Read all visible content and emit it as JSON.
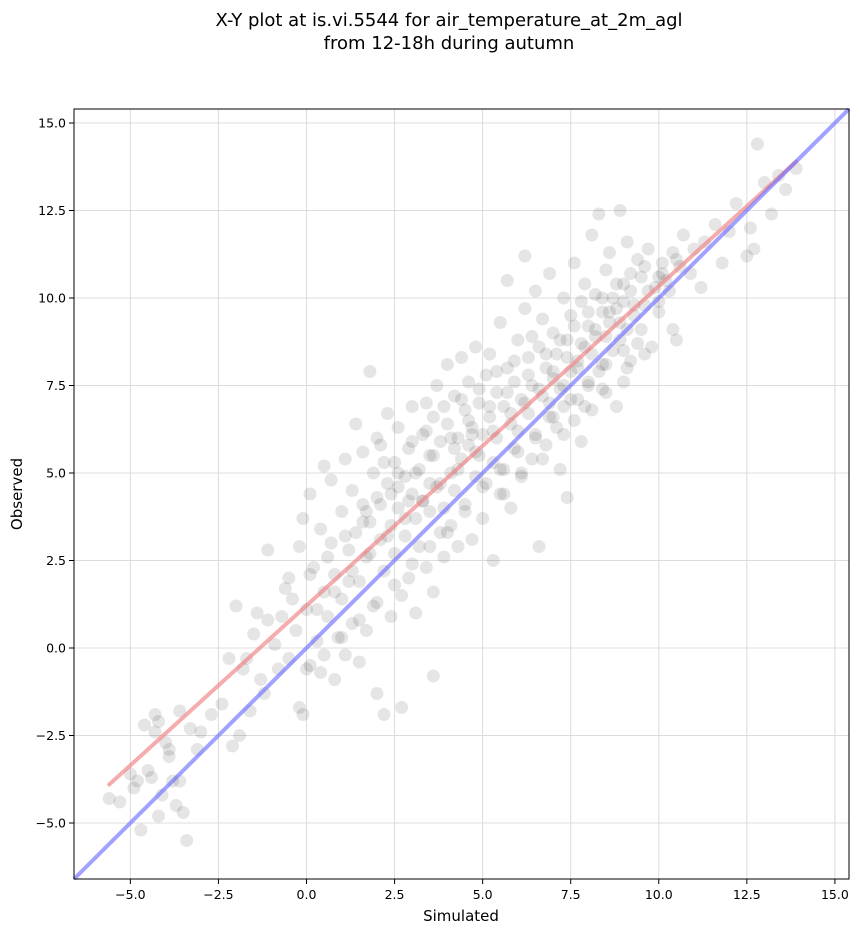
{
  "chart_data": {
    "type": "scatter",
    "title": "X-Y plot at is.vi.5544 for air_temperature_at_2m_agl",
    "subtitle": "from 12-18h during autumn",
    "xlabel": "Simulated",
    "ylabel": "Observed",
    "xlim": [
      -6.6,
      15.4
    ],
    "ylim": [
      -6.6,
      15.4
    ],
    "xticks": [
      -5.0,
      -2.5,
      0.0,
      2.5,
      5.0,
      7.5,
      10.0,
      12.5,
      15.0
    ],
    "yticks": [
      -5.0,
      -2.5,
      0.0,
      2.5,
      5.0,
      7.5,
      10.0,
      12.5,
      15.0
    ],
    "xtick_labels": [
      "−5.0",
      "−2.5",
      "0.0",
      "2.5",
      "5.0",
      "7.5",
      "10.0",
      "12.5",
      "15.0"
    ],
    "ytick_labels": [
      "−5.0",
      "−2.5",
      "0.0",
      "2.5",
      "5.0",
      "7.5",
      "10.0",
      "12.5",
      "15.0"
    ],
    "grid": true,
    "colors": {
      "points": "#000000",
      "fit_line": "#f08080",
      "identity_line": "#6f6fff"
    },
    "fit_line": {
      "x": [
        -5.6,
        13.9
      ],
      "y": [
        -3.9,
        13.9
      ]
    },
    "identity_line": {
      "x": [
        -6.6,
        15.4
      ],
      "y": [
        -6.6,
        15.4
      ]
    },
    "points": [
      [
        -5.6,
        -4.3
      ],
      [
        -5.3,
        -4.4
      ],
      [
        -5.0,
        -3.6
      ],
      [
        -4.9,
        -4.0
      ],
      [
        -4.8,
        -3.8
      ],
      [
        -4.7,
        -5.2
      ],
      [
        -4.6,
        -2.2
      ],
      [
        -4.5,
        -3.5
      ],
      [
        -4.4,
        -3.7
      ],
      [
        -4.3,
        -2.4
      ],
      [
        -4.3,
        -1.9
      ],
      [
        -4.2,
        -2.1
      ],
      [
        -4.2,
        -4.8
      ],
      [
        -4.1,
        -4.2
      ],
      [
        -4.0,
        -2.7
      ],
      [
        -3.9,
        -3.1
      ],
      [
        -3.9,
        -2.9
      ],
      [
        -3.8,
        -3.8
      ],
      [
        -3.7,
        -4.5
      ],
      [
        -3.6,
        -3.8
      ],
      [
        -3.6,
        -1.8
      ],
      [
        -3.5,
        -4.7
      ],
      [
        -3.4,
        -5.5
      ],
      [
        -3.3,
        -2.3
      ],
      [
        -3.1,
        -2.9
      ],
      [
        -3.0,
        -2.4
      ],
      [
        -2.7,
        -1.9
      ],
      [
        -2.4,
        -1.6
      ],
      [
        -2.2,
        -0.3
      ],
      [
        -2.1,
        -2.8
      ],
      [
        -2.0,
        1.2
      ],
      [
        -1.9,
        -2.5
      ],
      [
        -1.8,
        -0.6
      ],
      [
        -1.7,
        -0.3
      ],
      [
        -1.6,
        -1.8
      ],
      [
        -1.5,
        0.4
      ],
      [
        -1.4,
        1.0
      ],
      [
        -1.3,
        -0.9
      ],
      [
        -1.2,
        -1.3
      ],
      [
        -1.1,
        0.8
      ],
      [
        -1.1,
        2.8
      ],
      [
        -0.9,
        0.1
      ],
      [
        -0.8,
        -0.6
      ],
      [
        -0.7,
        0.9
      ],
      [
        -0.6,
        1.7
      ],
      [
        -0.5,
        2.0
      ],
      [
        -0.5,
        -0.3
      ],
      [
        -0.4,
        1.4
      ],
      [
        -0.3,
        0.5
      ],
      [
        -0.2,
        2.9
      ],
      [
        -0.2,
        -1.7
      ],
      [
        -0.1,
        3.7
      ],
      [
        -0.1,
        -1.9
      ],
      [
        0.0,
        1.1
      ],
      [
        0.1,
        4.4
      ],
      [
        0.1,
        -0.5
      ],
      [
        0.2,
        2.3
      ],
      [
        0.3,
        0.2
      ],
      [
        0.4,
        3.4
      ],
      [
        0.4,
        -0.7
      ],
      [
        0.5,
        5.2
      ],
      [
        0.5,
        1.6
      ],
      [
        0.6,
        0.9
      ],
      [
        0.7,
        3.0
      ],
      [
        0.7,
        4.8
      ],
      [
        0.8,
        2.1
      ],
      [
        0.8,
        -0.9
      ],
      [
        0.9,
        0.3
      ],
      [
        1.0,
        3.9
      ],
      [
        1.0,
        1.4
      ],
      [
        1.1,
        5.4
      ],
      [
        1.1,
        -0.2
      ],
      [
        1.2,
        2.8
      ],
      [
        1.3,
        4.5
      ],
      [
        1.3,
        0.7
      ],
      [
        1.4,
        3.3
      ],
      [
        1.4,
        6.4
      ],
      [
        1.5,
        1.9
      ],
      [
        1.5,
        -0.4
      ],
      [
        1.6,
        4.1
      ],
      [
        1.6,
        5.6
      ],
      [
        1.7,
        2.6
      ],
      [
        1.7,
        0.5
      ],
      [
        1.8,
        7.9
      ],
      [
        1.8,
        3.6
      ],
      [
        1.9,
        5.0
      ],
      [
        1.9,
        1.2
      ],
      [
        2.0,
        4.3
      ],
      [
        2.0,
        6.0
      ],
      [
        2.0,
        -1.3
      ],
      [
        2.1,
        3.1
      ],
      [
        2.1,
        5.8
      ],
      [
        2.2,
        2.2
      ],
      [
        2.2,
        -1.9
      ],
      [
        2.3,
        4.7
      ],
      [
        2.3,
        6.7
      ],
      [
        2.4,
        3.5
      ],
      [
        2.4,
        0.9
      ],
      [
        2.5,
        5.3
      ],
      [
        2.5,
        2.7
      ],
      [
        2.6,
        4.0
      ],
      [
        2.6,
        6.3
      ],
      [
        2.7,
        1.5
      ],
      [
        2.7,
        -1.7
      ],
      [
        2.8,
        4.9
      ],
      [
        2.8,
        3.2
      ],
      [
        2.9,
        5.7
      ],
      [
        2.9,
        2.0
      ],
      [
        3.0,
        6.9
      ],
      [
        3.0,
        4.4
      ],
      [
        3.1,
        3.7
      ],
      [
        3.1,
        1.0
      ],
      [
        3.2,
        5.1
      ],
      [
        3.2,
        2.9
      ],
      [
        3.3,
        6.1
      ],
      [
        3.3,
        4.2
      ],
      [
        3.4,
        7.0
      ],
      [
        3.4,
        2.3
      ],
      [
        3.5,
        5.5
      ],
      [
        3.5,
        3.9
      ],
      [
        3.6,
        6.6
      ],
      [
        3.6,
        1.6
      ],
      [
        3.6,
        -0.8
      ],
      [
        3.7,
        4.6
      ],
      [
        3.7,
        7.5
      ],
      [
        3.8,
        3.3
      ],
      [
        3.8,
        5.9
      ],
      [
        3.9,
        4.0
      ],
      [
        3.9,
        2.6
      ],
      [
        4.0,
        6.4
      ],
      [
        4.0,
        8.1
      ],
      [
        4.1,
        5.0
      ],
      [
        4.1,
        3.5
      ],
      [
        4.2,
        7.2
      ],
      [
        4.2,
        4.5
      ],
      [
        4.3,
        6.0
      ],
      [
        4.3,
        2.9
      ],
      [
        4.4,
        5.4
      ],
      [
        4.4,
        8.3
      ],
      [
        4.5,
        6.8
      ],
      [
        4.5,
        4.1
      ],
      [
        4.6,
        7.6
      ],
      [
        4.6,
        5.8
      ],
      [
        4.7,
        3.1
      ],
      [
        4.7,
        6.3
      ],
      [
        4.8,
        8.6
      ],
      [
        4.8,
        4.9
      ],
      [
        4.9,
        7.0
      ],
      [
        4.9,
        5.5
      ],
      [
        5.0,
        6.1
      ],
      [
        5.0,
        3.7
      ],
      [
        5.1,
        7.8
      ],
      [
        5.1,
        4.7
      ],
      [
        5.2,
        6.6
      ],
      [
        5.2,
        8.4
      ],
      [
        5.3,
        5.3
      ],
      [
        5.3,
        2.5
      ],
      [
        5.4,
        7.3
      ],
      [
        5.4,
        6.0
      ],
      [
        5.5,
        4.4
      ],
      [
        5.5,
        9.3
      ],
      [
        5.6,
        6.9
      ],
      [
        5.6,
        5.1
      ],
      [
        5.7,
        8.0
      ],
      [
        5.7,
        10.5
      ],
      [
        5.8,
        6.4
      ],
      [
        5.8,
        4.0
      ],
      [
        5.9,
        7.6
      ],
      [
        5.9,
        5.7
      ],
      [
        6.0,
        8.8
      ],
      [
        6.0,
        6.2
      ],
      [
        6.1,
        7.1
      ],
      [
        6.1,
        4.9
      ],
      [
        6.2,
        9.7
      ],
      [
        6.2,
        11.2
      ],
      [
        6.3,
        6.7
      ],
      [
        6.3,
        8.3
      ],
      [
        6.4,
        5.4
      ],
      [
        6.4,
        7.5
      ],
      [
        6.5,
        10.2
      ],
      [
        6.5,
        6.1
      ],
      [
        6.6,
        8.6
      ],
      [
        6.6,
        2.9
      ],
      [
        6.7,
        7.2
      ],
      [
        6.7,
        9.4
      ],
      [
        6.8,
        5.8
      ],
      [
        6.8,
        8.0
      ],
      [
        6.9,
        6.6
      ],
      [
        6.9,
        10.7
      ],
      [
        7.0,
        7.7
      ],
      [
        7.0,
        9.0
      ],
      [
        7.1,
        6.3
      ],
      [
        7.1,
        8.4
      ],
      [
        7.2,
        5.1
      ],
      [
        7.2,
        7.4
      ],
      [
        7.3,
        10.0
      ],
      [
        7.3,
        6.9
      ],
      [
        7.4,
        8.8
      ],
      [
        7.4,
        4.3
      ],
      [
        7.5,
        7.9
      ],
      [
        7.5,
        9.5
      ],
      [
        7.6,
        6.5
      ],
      [
        7.6,
        11.0
      ],
      [
        7.7,
        8.2
      ],
      [
        7.7,
        7.1
      ],
      [
        7.8,
        9.9
      ],
      [
        7.8,
        5.9
      ],
      [
        7.9,
        8.6
      ],
      [
        7.9,
        10.4
      ],
      [
        8.0,
        7.5
      ],
      [
        8.0,
        9.2
      ],
      [
        8.1,
        11.8
      ],
      [
        8.1,
        6.8
      ],
      [
        8.2,
        8.9
      ],
      [
        8.2,
        10.1
      ],
      [
        8.3,
        7.9
      ],
      [
        8.3,
        12.4
      ],
      [
        8.4,
        9.6
      ],
      [
        8.4,
        8.1
      ],
      [
        8.5,
        10.8
      ],
      [
        8.5,
        7.3
      ],
      [
        8.6,
        9.3
      ],
      [
        8.6,
        11.3
      ],
      [
        8.7,
        8.5
      ],
      [
        8.7,
        10.0
      ],
      [
        8.8,
        6.9
      ],
      [
        8.8,
        9.7
      ],
      [
        8.9,
        12.5
      ],
      [
        8.9,
        8.8
      ],
      [
        9.0,
        10.4
      ],
      [
        9.0,
        7.6
      ],
      [
        9.1,
        9.1
      ],
      [
        9.1,
        11.6
      ],
      [
        9.2,
        8.2
      ],
      [
        9.2,
        10.2
      ],
      [
        9.3,
        9.5
      ],
      [
        9.4,
        11.1
      ],
      [
        9.4,
        8.7
      ],
      [
        9.5,
        10.6
      ],
      [
        9.6,
        9.8
      ],
      [
        9.7,
        11.4
      ],
      [
        9.8,
        8.6
      ],
      [
        9.9,
        10.3
      ],
      [
        10.0,
        9.9
      ],
      [
        10.1,
        11.0
      ],
      [
        10.2,
        10.5
      ],
      [
        10.4,
        11.3
      ],
      [
        10.5,
        8.8
      ],
      [
        10.6,
        10.9
      ],
      [
        10.7,
        11.8
      ],
      [
        10.9,
        10.7
      ],
      [
        11.0,
        11.4
      ],
      [
        11.2,
        10.3
      ],
      [
        11.3,
        11.6
      ],
      [
        11.6,
        12.1
      ],
      [
        11.8,
        11.0
      ],
      [
        12.0,
        11.9
      ],
      [
        12.2,
        12.7
      ],
      [
        12.5,
        11.2
      ],
      [
        12.6,
        12.0
      ],
      [
        12.7,
        11.4
      ],
      [
        12.8,
        14.4
      ],
      [
        13.0,
        13.3
      ],
      [
        13.2,
        12.4
      ],
      [
        13.4,
        13.5
      ],
      [
        13.6,
        13.1
      ],
      [
        13.9,
        13.7
      ],
      [
        5.3,
        6.2
      ],
      [
        5.8,
        6.7
      ],
      [
        6.2,
        7.0
      ],
      [
        6.6,
        7.4
      ],
      [
        7.0,
        7.9
      ],
      [
        7.4,
        8.3
      ],
      [
        7.8,
        8.7
      ],
      [
        8.2,
        9.1
      ],
      [
        8.6,
        9.6
      ],
      [
        9.0,
        9.9
      ],
      [
        4.3,
        5.1
      ],
      [
        4.8,
        5.6
      ],
      [
        3.8,
        4.7
      ],
      [
        3.3,
        4.2
      ],
      [
        2.8,
        3.7
      ],
      [
        2.3,
        3.2
      ],
      [
        1.8,
        2.7
      ],
      [
        1.3,
        2.2
      ],
      [
        0.8,
        1.6
      ],
      [
        0.3,
        1.1
      ],
      [
        5.5,
        5.1
      ],
      [
        6.0,
        5.6
      ],
      [
        6.5,
        6.0
      ],
      [
        7.0,
        6.6
      ],
      [
        7.5,
        7.1
      ],
      [
        8.0,
        7.6
      ],
      [
        8.5,
        8.1
      ],
      [
        9.0,
        8.5
      ],
      [
        9.5,
        9.1
      ],
      [
        10.0,
        9.6
      ],
      [
        4.5,
        3.9
      ],
      [
        4.0,
        3.3
      ],
      [
        3.5,
        2.9
      ],
      [
        3.0,
        2.4
      ],
      [
        2.5,
        1.8
      ],
      [
        2.0,
        1.3
      ],
      [
        1.5,
        0.8
      ],
      [
        1.0,
        0.3
      ],
      [
        0.5,
        -0.2
      ],
      [
        0.0,
        -0.6
      ],
      [
        6.8,
        8.4
      ],
      [
        7.2,
        8.8
      ],
      [
        7.6,
        9.2
      ],
      [
        8.0,
        9.6
      ],
      [
        8.4,
        10.0
      ],
      [
        8.8,
        10.4
      ],
      [
        9.2,
        10.7
      ],
      [
        9.6,
        10.9
      ],
      [
        10.0,
        10.6
      ],
      [
        10.3,
        10.2
      ],
      [
        4.6,
        6.5
      ],
      [
        4.1,
        6.0
      ],
      [
        3.6,
        5.5
      ],
      [
        3.1,
        5.0
      ],
      [
        2.6,
        4.6
      ],
      [
        2.1,
        4.1
      ],
      [
        1.6,
        3.6
      ],
      [
        1.1,
        3.2
      ],
      [
        0.6,
        2.6
      ],
      [
        0.1,
        2.1
      ],
      [
        5.0,
        4.6
      ],
      [
        5.6,
        4.4
      ],
      [
        6.1,
        5.0
      ],
      [
        6.7,
        5.4
      ],
      [
        7.3,
        6.1
      ],
      [
        7.9,
        6.9
      ],
      [
        8.4,
        7.4
      ],
      [
        9.1,
        8.0
      ],
      [
        9.6,
        8.4
      ],
      [
        10.4,
        9.1
      ],
      [
        2.2,
        5.3
      ],
      [
        2.6,
        5.0
      ],
      [
        3.0,
        5.9
      ],
      [
        3.4,
        6.2
      ],
      [
        3.9,
        6.9
      ],
      [
        4.4,
        7.1
      ],
      [
        4.9,
        7.4
      ],
      [
        5.4,
        7.9
      ],
      [
        5.9,
        8.2
      ],
      [
        6.4,
        8.9
      ],
      [
        1.2,
        1.9
      ],
      [
        1.7,
        3.9
      ],
      [
        2.4,
        4.4
      ],
      [
        2.9,
        4.2
      ],
      [
        3.5,
        4.7
      ],
      [
        4.2,
        5.7
      ],
      [
        4.7,
        6.1
      ],
      [
        5.2,
        6.9
      ],
      [
        5.7,
        7.3
      ],
      [
        6.3,
        7.8
      ],
      [
        6.9,
        7.0
      ],
      [
        7.3,
        7.5
      ],
      [
        7.7,
        8.0
      ],
      [
        8.1,
        8.4
      ],
      [
        8.5,
        8.9
      ],
      [
        8.9,
        9.3
      ],
      [
        9.3,
        9.8
      ],
      [
        9.7,
        10.2
      ],
      [
        10.1,
        10.7
      ],
      [
        10.5,
        11.1
      ]
    ]
  }
}
